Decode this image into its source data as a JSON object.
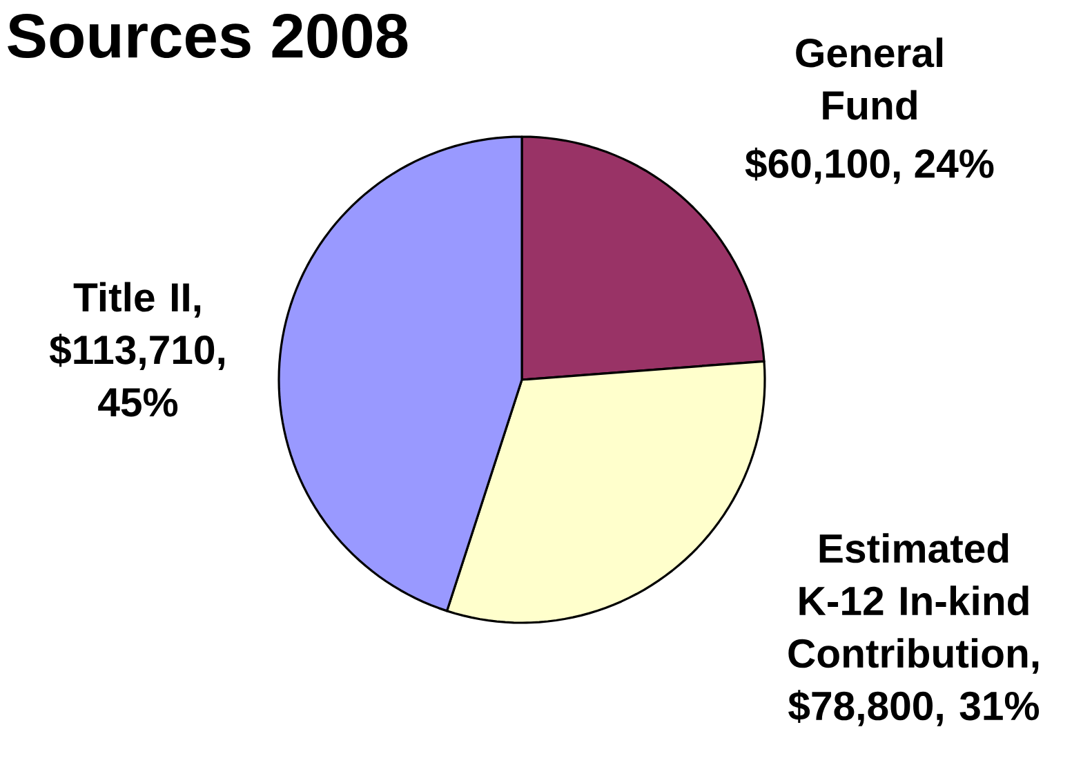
{
  "chart_data": {
    "type": "pie",
    "title": "Sources 2008",
    "categories": [
      "General Fund",
      "Estimated K-12 In-kind Contribution",
      "Title II"
    ],
    "values": [
      60100,
      78800,
      113710
    ],
    "colors": [
      "#993366",
      "#ffffcc",
      "#9999ff"
    ],
    "value_labels": [
      "$60,100, 24%",
      ", $78,800, 31%",
      ", $113,710, 45%"
    ]
  }
}
